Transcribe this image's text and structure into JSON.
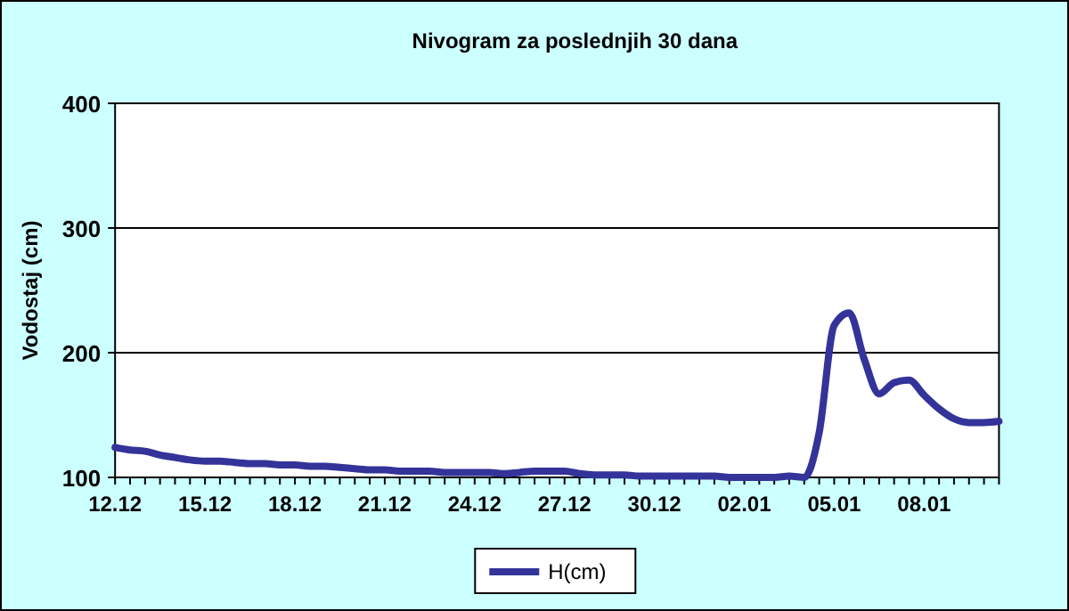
{
  "chart_data": {
    "type": "line",
    "title": "Nivogram za poslednjih 30 dana",
    "ylabel": "Vodostaj (cm)",
    "categories": [
      "12.12",
      null,
      null,
      null,
      null,
      null,
      "15.12",
      null,
      null,
      null,
      null,
      null,
      "18.12",
      null,
      null,
      null,
      null,
      null,
      "21.12",
      null,
      null,
      null,
      null,
      null,
      "24.12",
      null,
      null,
      null,
      null,
      null,
      "27.12",
      null,
      null,
      null,
      null,
      null,
      "30.12",
      null,
      null,
      null,
      null,
      null,
      "02.01",
      null,
      null,
      null,
      null,
      null,
      "05.01",
      null,
      null,
      null,
      null,
      null,
      "08.01",
      null,
      null,
      null,
      null,
      null
    ],
    "series": [
      {
        "name": "H(cm)",
        "color": "#333399",
        "values": [
          124,
          122,
          121,
          118,
          116,
          114,
          113,
          113,
          112,
          111,
          111,
          110,
          110,
          109,
          109,
          108,
          107,
          106,
          106,
          105,
          105,
          105,
          104,
          104,
          104,
          104,
          103,
          104,
          105,
          105,
          105,
          103,
          102,
          102,
          102,
          101,
          101,
          101,
          101,
          101,
          101,
          100,
          100,
          100,
          100,
          101,
          100,
          136,
          222,
          232,
          195,
          167,
          176,
          178,
          166,
          155,
          147,
          144,
          144,
          145
        ]
      }
    ],
    "ylim": [
      100,
      400
    ],
    "yticks": [
      100,
      200,
      300,
      400
    ],
    "grid": "y",
    "legend": "bottom",
    "marker": "none",
    "line_style": "solid"
  }
}
